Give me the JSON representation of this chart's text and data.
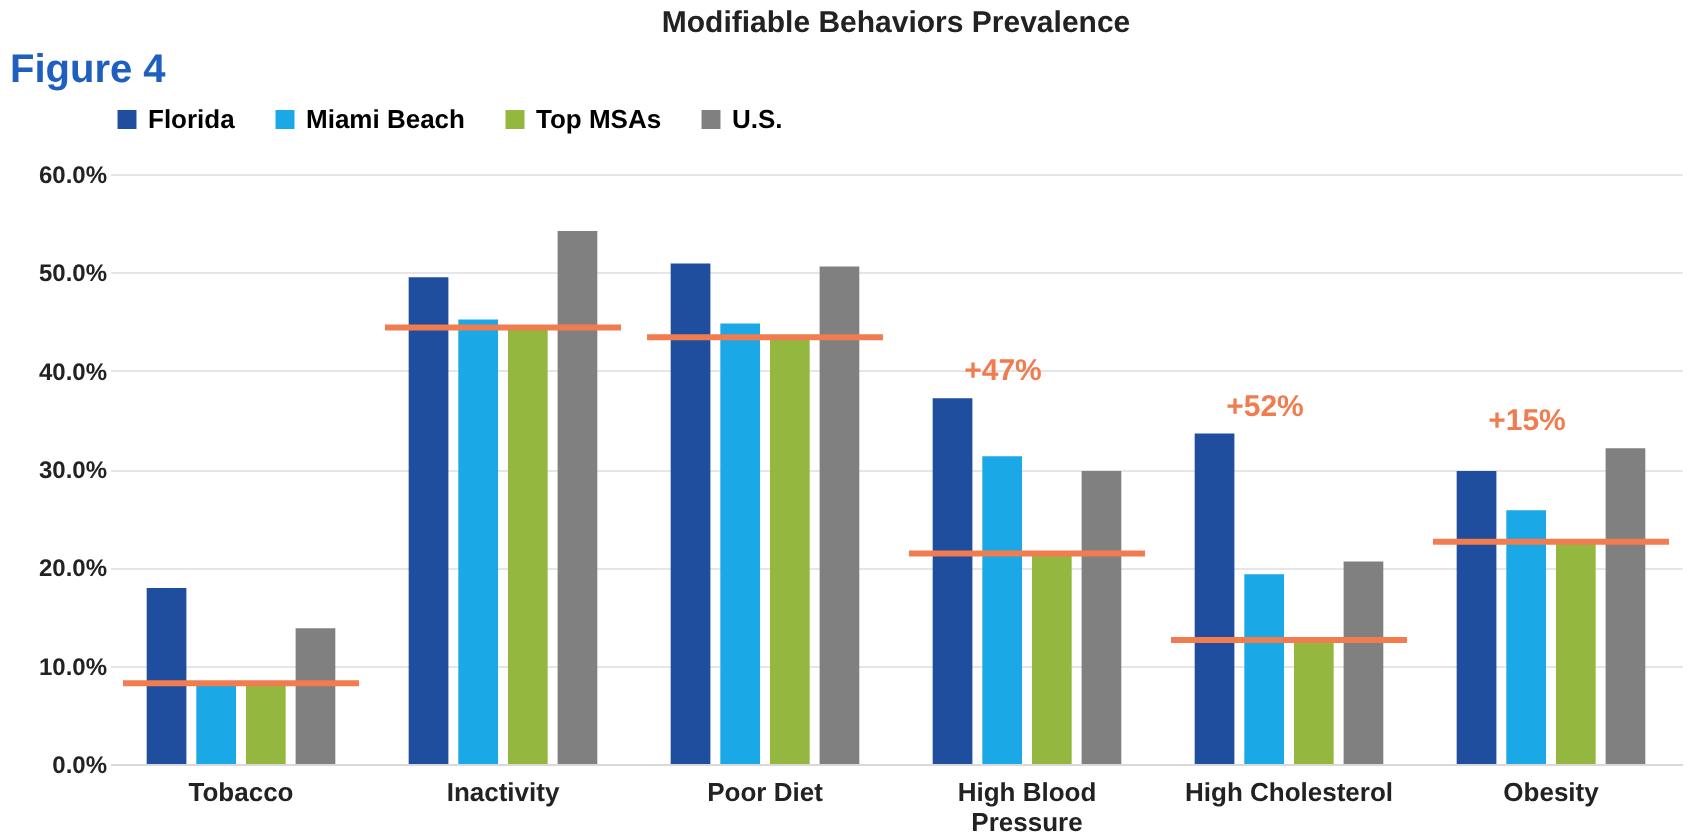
{
  "chart_data": {
    "type": "bar",
    "title": "Modifiable Behaviors Prevalence",
    "categories": [
      "Tobacco",
      "Inactivity",
      "Poor Diet",
      "High Blood Pressure",
      "High Cholesterol",
      "Obesity"
    ],
    "series": [
      {
        "name": "Florida",
        "color": "#1f4e9f",
        "values": [
          17.9,
          49.5,
          50.9,
          37.2,
          33.6,
          29.8
        ]
      },
      {
        "name": "Miami Beach",
        "color": "#1aa9e6",
        "values": [
          8.1,
          45.2,
          44.8,
          31.3,
          19.3,
          25.8
        ]
      },
      {
        "name": "Top MSAs",
        "color": "#94b73f",
        "values": [
          8.1,
          44.4,
          43.4,
          21.4,
          12.6,
          22.6
        ]
      },
      {
        "name": "U.S.",
        "color": "#808080",
        "values": [
          13.8,
          54.2,
          50.6,
          29.8,
          20.6,
          32.1
        ]
      }
    ],
    "ref_lines": [
      {
        "axis": "y",
        "value": 8.2,
        "color": "#f07c4f"
      },
      {
        "axis": "y",
        "value": 44.4,
        "color": "#f07c4f"
      },
      {
        "axis": "y",
        "value": 43.4,
        "color": "#f07c4f"
      },
      {
        "axis": "y",
        "value": 21.4,
        "color": "#f07c4f"
      },
      {
        "axis": "y",
        "value": 12.6,
        "color": "#f07c4f"
      },
      {
        "axis": "y",
        "value": 22.6,
        "color": "#f07c4f"
      }
    ],
    "ylim": [
      0,
      60
    ],
    "yticks": [
      {
        "value": 0,
        "label": "0.0%"
      },
      {
        "value": 10,
        "label": "10.0%"
      },
      {
        "value": 20,
        "label": "20.0%"
      },
      {
        "value": 30,
        "label": "30.0%"
      },
      {
        "value": 40,
        "label": "40.0%"
      },
      {
        "value": 50,
        "label": "50.0%"
      },
      {
        "value": 60,
        "label": "60.0%"
      }
    ],
    "grid": "y",
    "legend": "top",
    "annotations": [
      "Figure 4",
      "+47%",
      "+52%",
      "+15%"
    ]
  }
}
